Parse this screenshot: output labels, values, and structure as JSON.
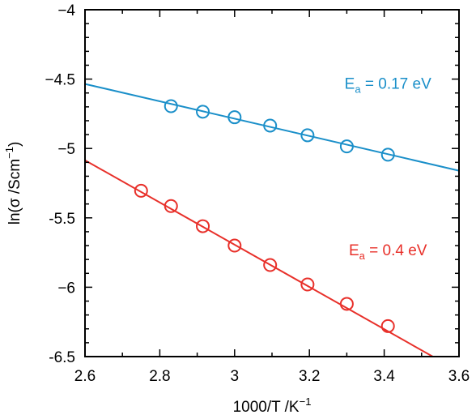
{
  "chart_data": {
    "type": "scatter",
    "xlabel_base": "1000/T /K",
    "xlabel_sup": "−1",
    "ylabel_base": "ln(σ /Scm",
    "ylabel_sup": "−1",
    "ylabel_end": ")",
    "xlim": [
      2.6,
      3.6
    ],
    "ylim": [
      -6.5,
      -4
    ],
    "x_ticks": [
      2.6,
      2.8,
      3.0,
      3.2,
      3.4,
      3.6
    ],
    "x_tick_labels": [
      "2.6",
      "2.8",
      "3",
      "3.2",
      "3.4",
      "3.6"
    ],
    "y_ticks": [
      -4,
      -4.5,
      -5,
      -5.5,
      -6,
      -6.5
    ],
    "y_tick_labels": [
      "−4",
      "−4.5",
      "−5",
      "-5.5",
      "−6",
      "-6.5"
    ],
    "grid": false,
    "series": [
      {
        "color": "#1a8fc9",
        "x": [
          2.83,
          2.915,
          3.0,
          3.095,
          3.195,
          3.3,
          3.41
        ],
        "y": [
          -4.695,
          -4.735,
          -4.775,
          -4.835,
          -4.905,
          -4.985,
          -5.045
        ],
        "fit": {
          "x": [
            2.6,
            3.6
          ],
          "y": [
            -4.535,
            -5.16
          ]
        },
        "annotation": {
          "base": "E",
          "sub": "a",
          "rest": " = 0.17 eV",
          "x": 3.41,
          "y": -4.57
        }
      },
      {
        "color": "#e8302a",
        "x": [
          2.75,
          2.83,
          2.915,
          3.0,
          3.095,
          3.195,
          3.3,
          3.41
        ],
        "y": [
          -5.305,
          -5.415,
          -5.56,
          -5.7,
          -5.84,
          -5.98,
          -6.12,
          -6.28
        ],
        "fit": {
          "x": [
            2.6,
            3.53
          ],
          "y": [
            -5.085,
            -6.5
          ]
        },
        "annotation": {
          "base": "E",
          "sub": "a",
          "rest": " = 0.4 eV",
          "x": 3.41,
          "y": -5.77
        }
      }
    ]
  }
}
